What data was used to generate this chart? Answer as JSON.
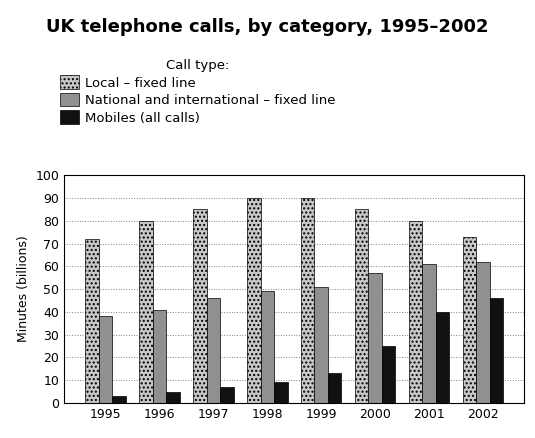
{
  "title": "UK telephone calls, by category, 1995–2002",
  "ylabel": "Minutes (billions)",
  "years": [
    1995,
    1996,
    1997,
    1998,
    1999,
    2000,
    2001,
    2002
  ],
  "local_fixed": [
    72,
    80,
    85,
    90,
    90,
    85,
    80,
    73
  ],
  "national_fixed": [
    38,
    41,
    46,
    49,
    51,
    57,
    61,
    62
  ],
  "mobiles": [
    3,
    5,
    7,
    9,
    13,
    25,
    40,
    46
  ],
  "ylim": [
    0,
    100
  ],
  "yticks": [
    0,
    10,
    20,
    30,
    40,
    50,
    60,
    70,
    80,
    90,
    100
  ],
  "legend_labels": [
    "Local – fixed line",
    "National and international – fixed line",
    "Mobiles (all calls)"
  ],
  "legend_title": "Call type:",
  "local_color": "#c8c8c8",
  "local_hatch": "....",
  "national_color": "#909090",
  "national_hatch": "",
  "mobile_color": "#111111",
  "mobile_hatch": "",
  "bar_width": 0.25,
  "title_fontsize": 13,
  "axis_fontsize": 9,
  "legend_fontsize": 9.5
}
